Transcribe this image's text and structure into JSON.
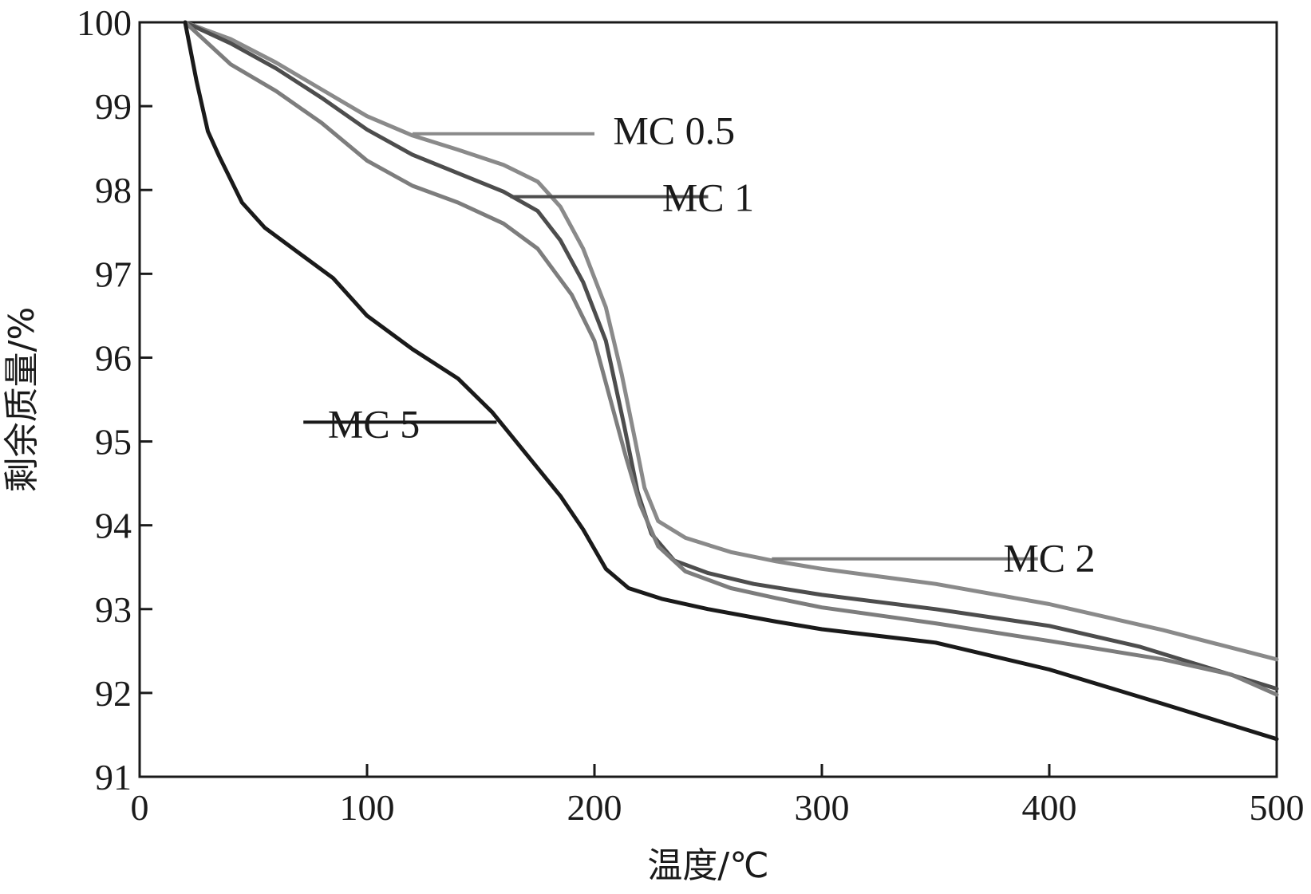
{
  "chart_data": {
    "type": "line",
    "title": "",
    "xlabel": "温度/℃",
    "ylabel": "剩余质量/%",
    "xlim": [
      0,
      500
    ],
    "ylim": [
      91,
      100
    ],
    "xticks": [
      0,
      100,
      200,
      300,
      400,
      500
    ],
    "yticks": [
      91,
      92,
      93,
      94,
      95,
      96,
      97,
      98,
      99,
      100
    ],
    "grid": false,
    "legend": "inline-labels",
    "series": [
      {
        "name": "MC 0.5",
        "color": "#8a8a8a",
        "label_x": 235,
        "label_y": 98.7,
        "leader_from": [
          120,
          98.67
        ],
        "leader_to": [
          200,
          98.67
        ],
        "points": [
          [
            20,
            100
          ],
          [
            40,
            99.8
          ],
          [
            60,
            99.52
          ],
          [
            80,
            99.2
          ],
          [
            100,
            98.88
          ],
          [
            120,
            98.65
          ],
          [
            140,
            98.48
          ],
          [
            160,
            98.3
          ],
          [
            175,
            98.1
          ],
          [
            185,
            97.8
          ],
          [
            195,
            97.3
          ],
          [
            205,
            96.6
          ],
          [
            212,
            95.8
          ],
          [
            218,
            95.0
          ],
          [
            222,
            94.45
          ],
          [
            228,
            94.05
          ],
          [
            240,
            93.85
          ],
          [
            260,
            93.68
          ],
          [
            280,
            93.57
          ],
          [
            300,
            93.48
          ],
          [
            350,
            93.3
          ],
          [
            400,
            93.06
          ],
          [
            450,
            92.75
          ],
          [
            500,
            92.4
          ]
        ]
      },
      {
        "name": "MC 1",
        "color": "#4d4d4d",
        "label_x": 250,
        "label_y": 97.9,
        "leader_from": [
          163,
          97.92
        ],
        "leader_to": [
          250,
          97.92
        ],
        "points": [
          [
            20,
            100
          ],
          [
            40,
            99.75
          ],
          [
            60,
            99.45
          ],
          [
            80,
            99.1
          ],
          [
            100,
            98.72
          ],
          [
            120,
            98.42
          ],
          [
            140,
            98.2
          ],
          [
            160,
            97.98
          ],
          [
            175,
            97.75
          ],
          [
            185,
            97.4
          ],
          [
            195,
            96.9
          ],
          [
            205,
            96.2
          ],
          [
            213,
            95.2
          ],
          [
            219,
            94.4
          ],
          [
            225,
            93.9
          ],
          [
            235,
            93.58
          ],
          [
            250,
            93.43
          ],
          [
            270,
            93.3
          ],
          [
            300,
            93.17
          ],
          [
            350,
            93.0
          ],
          [
            400,
            92.8
          ],
          [
            440,
            92.55
          ],
          [
            470,
            92.3
          ],
          [
            500,
            92.05
          ]
        ]
      },
      {
        "name": "MC 2",
        "color": "#7d7d7d",
        "label_x": 400,
        "label_y": 93.6,
        "leader_from": [
          278,
          93.6
        ],
        "leader_to": [
          395,
          93.6
        ],
        "points": [
          [
            20,
            100
          ],
          [
            40,
            99.5
          ],
          [
            60,
            99.18
          ],
          [
            80,
            98.8
          ],
          [
            100,
            98.35
          ],
          [
            120,
            98.05
          ],
          [
            140,
            97.85
          ],
          [
            160,
            97.6
          ],
          [
            175,
            97.3
          ],
          [
            190,
            96.75
          ],
          [
            200,
            96.2
          ],
          [
            208,
            95.4
          ],
          [
            214,
            94.8
          ],
          [
            220,
            94.25
          ],
          [
            228,
            93.75
          ],
          [
            240,
            93.45
          ],
          [
            260,
            93.25
          ],
          [
            280,
            93.13
          ],
          [
            300,
            93.02
          ],
          [
            350,
            92.83
          ],
          [
            400,
            92.62
          ],
          [
            450,
            92.4
          ],
          [
            480,
            92.22
          ],
          [
            500,
            91.98
          ]
        ]
      },
      {
        "name": "MC 5",
        "color": "#1a1a1a",
        "label_x": 103,
        "label_y": 95.2,
        "leader_from": [
          72,
          95.23
        ],
        "leader_to": [
          157,
          95.23
        ],
        "points": [
          [
            20,
            100
          ],
          [
            25,
            99.3
          ],
          [
            30,
            98.7
          ],
          [
            35,
            98.4
          ],
          [
            45,
            97.85
          ],
          [
            55,
            97.55
          ],
          [
            70,
            97.25
          ],
          [
            85,
            96.95
          ],
          [
            100,
            96.5
          ],
          [
            120,
            96.1
          ],
          [
            140,
            95.75
          ],
          [
            155,
            95.35
          ],
          [
            170,
            94.85
          ],
          [
            185,
            94.35
          ],
          [
            195,
            93.95
          ],
          [
            205,
            93.48
          ],
          [
            215,
            93.25
          ],
          [
            230,
            93.12
          ],
          [
            250,
            93.0
          ],
          [
            280,
            92.85
          ],
          [
            300,
            92.76
          ],
          [
            350,
            92.6
          ],
          [
            400,
            92.28
          ],
          [
            450,
            91.87
          ],
          [
            500,
            91.45
          ]
        ]
      }
    ]
  }
}
